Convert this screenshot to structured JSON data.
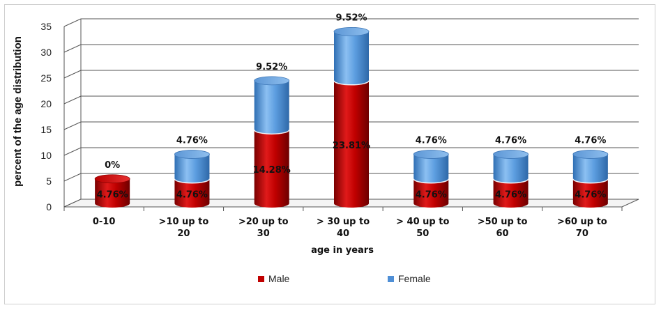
{
  "chart_data": {
    "type": "bar",
    "stacked": true,
    "style": "3d-cylinder",
    "ylabel": "percent of the age distribution",
    "xlabel": "age in years",
    "ylim": [
      0,
      35
    ],
    "yticks": [
      0,
      5,
      10,
      15,
      20,
      25,
      30,
      35
    ],
    "grid": true,
    "legend_position": "bottom",
    "categories": [
      [
        "0-10"
      ],
      [
        ">10 up  to",
        "20"
      ],
      [
        ">20 up to",
        "30"
      ],
      [
        "> 30 up to",
        "40"
      ],
      [
        "> 40 up to",
        "50"
      ],
      [
        ">50 up to",
        "60"
      ],
      [
        ">60 up to",
        "70"
      ]
    ],
    "series": [
      {
        "name": "Male",
        "color": "#c00000",
        "values": [
          4.76,
          4.76,
          14.28,
          23.81,
          4.76,
          4.76,
          4.76
        ],
        "labels": [
          "4.76%",
          "4.76%",
          "14.28%",
          "23.81%",
          "4.76%",
          "4.76%",
          "4.76%"
        ]
      },
      {
        "name": "Female",
        "color": "#4f8fd6",
        "values": [
          0,
          4.76,
          9.52,
          9.52,
          4.76,
          4.76,
          4.76
        ],
        "labels": [
          "0%",
          "4.76%",
          "9.52%",
          "9.52%",
          "4.76%",
          "4.76%",
          "4.76%"
        ]
      }
    ]
  }
}
